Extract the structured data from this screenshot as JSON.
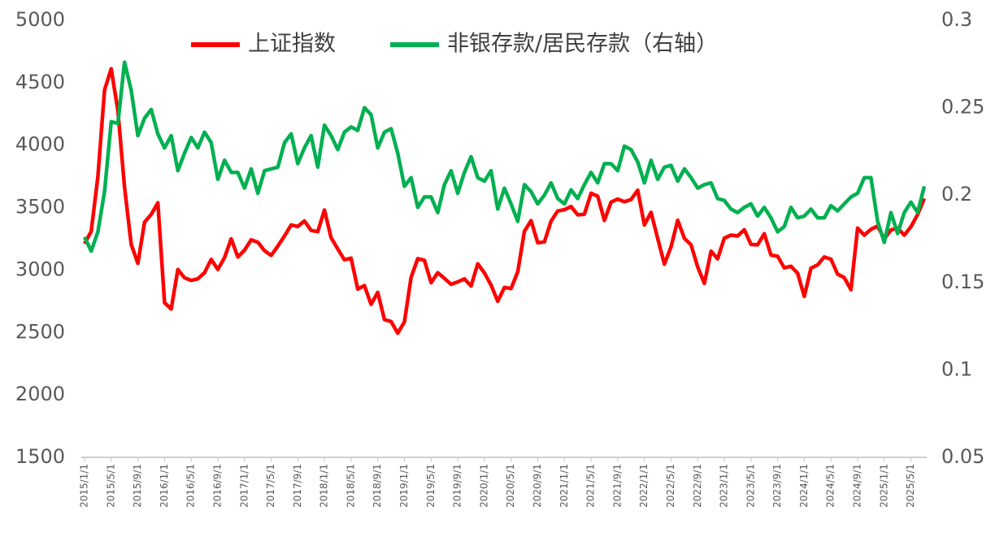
{
  "chart_data": {
    "type": "line",
    "categories": [
      "2015/1/1",
      null,
      null,
      null,
      "2015/5/1",
      null,
      null,
      null,
      "2015/9/1",
      null,
      null,
      null,
      "2016/1/1",
      null,
      null,
      null,
      "2016/5/1",
      null,
      null,
      null,
      "2016/9/1",
      null,
      null,
      null,
      "2017/1/1",
      null,
      null,
      null,
      "2017/5/1",
      null,
      null,
      null,
      "2017/9/1",
      null,
      null,
      null,
      "2018/1/1",
      null,
      null,
      null,
      "2018/5/1",
      null,
      null,
      null,
      "2018/9/1",
      null,
      null,
      null,
      "2019/1/1",
      null,
      null,
      null,
      "2019/5/1",
      null,
      null,
      null,
      "2019/9/1",
      null,
      null,
      null,
      "2020/1/1",
      null,
      null,
      null,
      "2020/5/1",
      null,
      null,
      null,
      "2020/9/1",
      null,
      null,
      null,
      "2021/1/1",
      null,
      null,
      null,
      "2021/5/1",
      null,
      null,
      null,
      "2021/9/1",
      null,
      null,
      null,
      "2022/1/1",
      null,
      null,
      null,
      "2022/5/1",
      null,
      null,
      null,
      "2022/9/1",
      null,
      null,
      null,
      "2023/1/1",
      null,
      null,
      null,
      "2023/5/1",
      null,
      null,
      null,
      "2023/9/1",
      null,
      null,
      null,
      "2024/1/1",
      null,
      null,
      null,
      "2024/5/1",
      null,
      null,
      null,
      "2024/9/1",
      null,
      null,
      null,
      "2025/1/1",
      null,
      null,
      null,
      "2025/5/1",
      null,
      null
    ],
    "series": [
      {
        "name": "上证指数",
        "color": "#ff0000",
        "axis": "y",
        "values": [
          3210,
          3310,
          3748,
          4442,
          4612,
          4277,
          3664,
          3206,
          3053,
          3383,
          3445,
          3539,
          2738,
          2688,
          3004,
          2938,
          2917,
          2930,
          2979,
          3085,
          3005,
          3100,
          3250,
          3104,
          3159,
          3242,
          3223,
          3155,
          3117,
          3192,
          3273,
          3361,
          3349,
          3393,
          3317,
          3307,
          3481,
          3259,
          3169,
          3082,
          3095,
          2847,
          2876,
          2725,
          2821,
          2603,
          2588,
          2494,
          2585,
          2941,
          3091,
          3078,
          2899,
          2979,
          2933,
          2886,
          2905,
          2929,
          2872,
          3050,
          2977,
          2880,
          2750,
          2860,
          2852,
          2985,
          3310,
          3396,
          3218,
          3225,
          3392,
          3473,
          3483,
          3509,
          3442,
          3447,
          3615,
          3591,
          3397,
          3544,
          3568,
          3547,
          3564,
          3640,
          3361,
          3462,
          3252,
          3047,
          3186,
          3399,
          3253,
          3202,
          3024,
          2893,
          3151,
          3089,
          3255,
          3280,
          3273,
          3323,
          3205,
          3202,
          3291,
          3120,
          3110,
          3018,
          3030,
          2975,
          2789,
          3015,
          3041,
          3105,
          3087,
          2967,
          2939,
          2842,
          3336,
          3279,
          3326,
          3352,
          3250,
          3321,
          3336,
          3279,
          3347,
          3444,
          3573
        ]
      },
      {
        "name": "非银存款/居民存款（右轴）",
        "color": "#00b050",
        "axis": "y2",
        "values": [
          0.176,
          0.168,
          0.179,
          0.202,
          0.242,
          0.241,
          0.276,
          0.26,
          0.234,
          0.244,
          0.249,
          0.235,
          0.227,
          0.234,
          0.214,
          0.224,
          0.233,
          0.227,
          0.236,
          0.23,
          0.209,
          0.22,
          0.213,
          0.213,
          0.204,
          0.215,
          0.201,
          0.214,
          0.215,
          0.216,
          0.23,
          0.235,
          0.218,
          0.227,
          0.234,
          0.216,
          0.24,
          0.234,
          0.226,
          0.236,
          0.239,
          0.237,
          0.25,
          0.246,
          0.227,
          0.236,
          0.238,
          0.224,
          0.205,
          0.21,
          0.193,
          0.199,
          0.199,
          0.19,
          0.206,
          0.214,
          0.201,
          0.213,
          0.222,
          0.21,
          0.208,
          0.214,
          0.192,
          0.204,
          0.195,
          0.185,
          0.206,
          0.202,
          0.195,
          0.2,
          0.207,
          0.198,
          0.195,
          0.203,
          0.198,
          0.206,
          0.213,
          0.207,
          0.218,
          0.218,
          0.214,
          0.228,
          0.226,
          0.219,
          0.207,
          0.22,
          0.209,
          0.216,
          0.217,
          0.208,
          0.215,
          0.21,
          0.204,
          0.206,
          0.207,
          0.198,
          0.197,
          0.192,
          0.19,
          0.193,
          0.195,
          0.188,
          0.193,
          0.187,
          0.179,
          0.182,
          0.193,
          0.187,
          0.188,
          0.192,
          0.187,
          0.187,
          0.194,
          0.191,
          0.195,
          0.199,
          0.201,
          0.21,
          0.21,
          0.185,
          0.173,
          0.19,
          0.178,
          0.19,
          0.196,
          0.19,
          0.205
        ]
      }
    ],
    "ylim": [
      1500,
      5000
    ],
    "yticks": [
      1500,
      2000,
      2500,
      3000,
      3500,
      4000,
      4500,
      5000
    ],
    "y2lim": [
      0.05,
      0.3
    ],
    "y2ticks": [
      0.05,
      0.1,
      0.15,
      0.2,
      0.25,
      0.3
    ],
    "legend": "top",
    "grid": false
  }
}
